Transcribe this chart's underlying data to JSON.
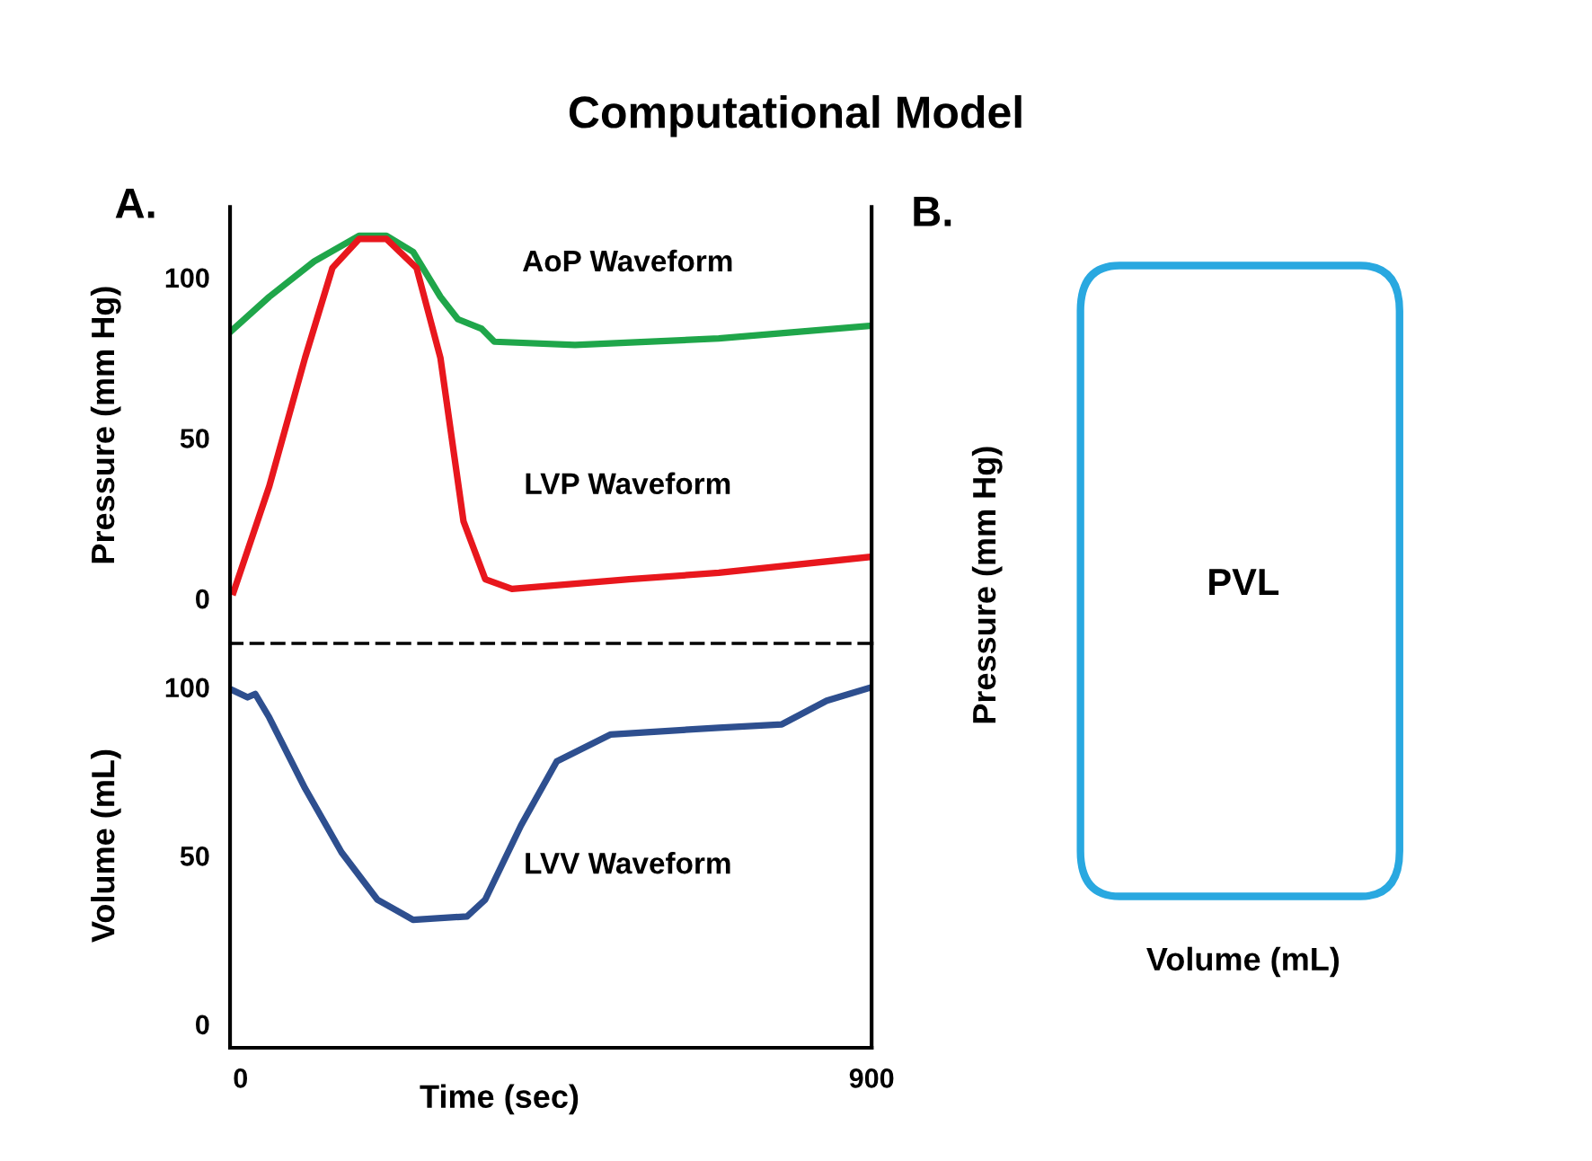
{
  "chart_data": [
    {
      "type": "line",
      "title": "Computational Model",
      "ylabel": "Pressure (mm Hg)",
      "annotations": [
        "A."
      ],
      "xlim": [
        -15,
        900
      ],
      "ylim": [
        -14,
        122
      ],
      "yticks": [
        0,
        50,
        100
      ],
      "tick_labels": "y",
      "grid": false,
      "legend": false,
      "marker": "none",
      "line_style": "solid",
      "series": [
        {
          "name": "AoP Waveform",
          "color": "#1fa64a",
          "x": [
            -15,
            41,
            105,
            169,
            208,
            246,
            285,
            310,
            344,
            362,
            477,
            682,
            900
          ],
          "values": [
            83,
            94,
            105,
            113,
            113,
            108,
            94,
            87,
            84,
            80,
            79,
            81,
            85
          ]
        },
        {
          "name": "LVP Waveform",
          "color": "#e8171d",
          "x": [
            -10,
            41,
            92,
            131,
            169,
            208,
            251,
            285,
            318,
            349,
            387,
            554,
            682,
            900
          ],
          "values": [
            2,
            35,
            75,
            103,
            112,
            112,
            103,
            75,
            24,
            6,
            3,
            6,
            8,
            13
          ]
        }
      ]
    },
    {
      "type": "line",
      "xlabel": "Time (sec)",
      "ylabel": "Volume (mL)",
      "xlim": [
        -15,
        900
      ],
      "xticks": [
        0,
        900
      ],
      "ylim": [
        -7,
        113
      ],
      "yticks": [
        0,
        50,
        100
      ],
      "grid": false,
      "legend": false,
      "marker": "none",
      "line_style": "solid",
      "series": [
        {
          "name": "LVV Waveform",
          "color": "#2e4f8f",
          "x": [
            -10,
            10,
            21,
            41,
            92,
            144,
            195,
            246,
            323,
            349,
            400,
            451,
            528,
            682,
            772,
            836,
            900
          ],
          "values": [
            99,
            97,
            98,
            91,
            70,
            51,
            37,
            31,
            32,
            37,
            59,
            78,
            86,
            88,
            89,
            96,
            100
          ]
        }
      ]
    },
    {
      "type": "other",
      "xlabel": "Volume (mL)",
      "ylabel": "Pressure (mm Hg)",
      "annotations": [
        "B.",
        "PVL"
      ]
    }
  ]
}
